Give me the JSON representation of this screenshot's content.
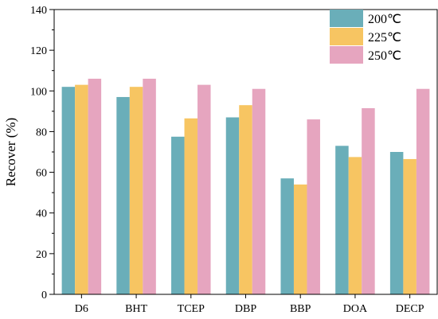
{
  "chart_data": {
    "type": "bar",
    "title": "",
    "xlabel": "",
    "ylabel": "Recover (%)",
    "ylim": [
      0,
      140
    ],
    "yticks": [
      0,
      20,
      40,
      60,
      80,
      100,
      120,
      140
    ],
    "grid": false,
    "legend_position": "top-right",
    "categories": [
      "D6",
      "BHT",
      "TCEP",
      "DBP",
      "BBP",
      "DOA",
      "DECP"
    ],
    "series": [
      {
        "name": "200℃",
        "color": "#6aaeb9",
        "values": [
          102,
          97,
          77.5,
          87,
          57,
          73,
          70
        ]
      },
      {
        "name": "225℃",
        "color": "#f7c562",
        "values": [
          103,
          102,
          86.5,
          93,
          54,
          67.5,
          66.5
        ]
      },
      {
        "name": "250℃",
        "color": "#e6a5bf",
        "values": [
          106,
          106,
          103,
          101,
          86,
          91.5,
          101
        ]
      }
    ]
  }
}
